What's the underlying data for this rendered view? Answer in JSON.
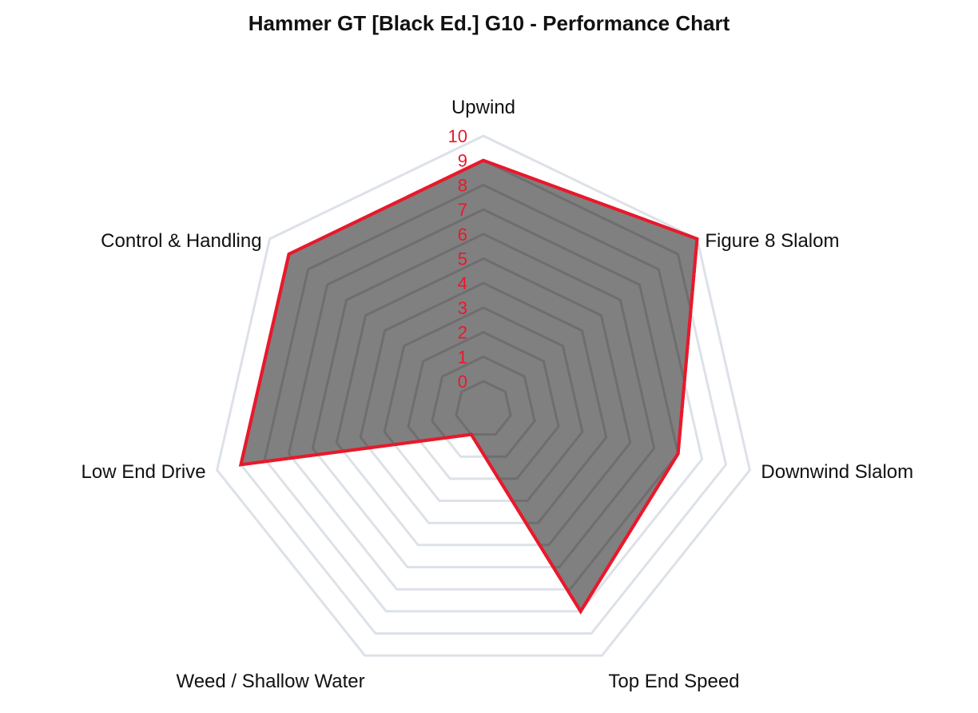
{
  "chart_data": {
    "type": "radar",
    "title": "Hammer GT [Black Ed.] G10 - Performance Chart",
    "categories": [
      "Upwind",
      "Figure 8 Slalom",
      "Downwind Slalom",
      "Top End Speed",
      "Weed / Shallow Water",
      "Low End Drive",
      "Control & Handling"
    ],
    "series": [
      {
        "values": [
          9,
          10,
          7,
          8,
          0,
          9,
          9
        ],
        "stroke_color": "#e8192c",
        "fill_color": "#808080"
      }
    ],
    "ticks": [
      "0",
      "1",
      "2",
      "3",
      "4",
      "5",
      "6",
      "7",
      "8",
      "9",
      "10"
    ],
    "rlim": [
      0,
      10
    ],
    "grid": true,
    "legend": "none",
    "colors": {
      "tick_label": "#e8192c",
      "outer_grid": "#dde1e8",
      "inner_grid": "#6e6e6e",
      "polygon_fill": "#808080",
      "polygon_stroke": "#e8192c"
    }
  }
}
